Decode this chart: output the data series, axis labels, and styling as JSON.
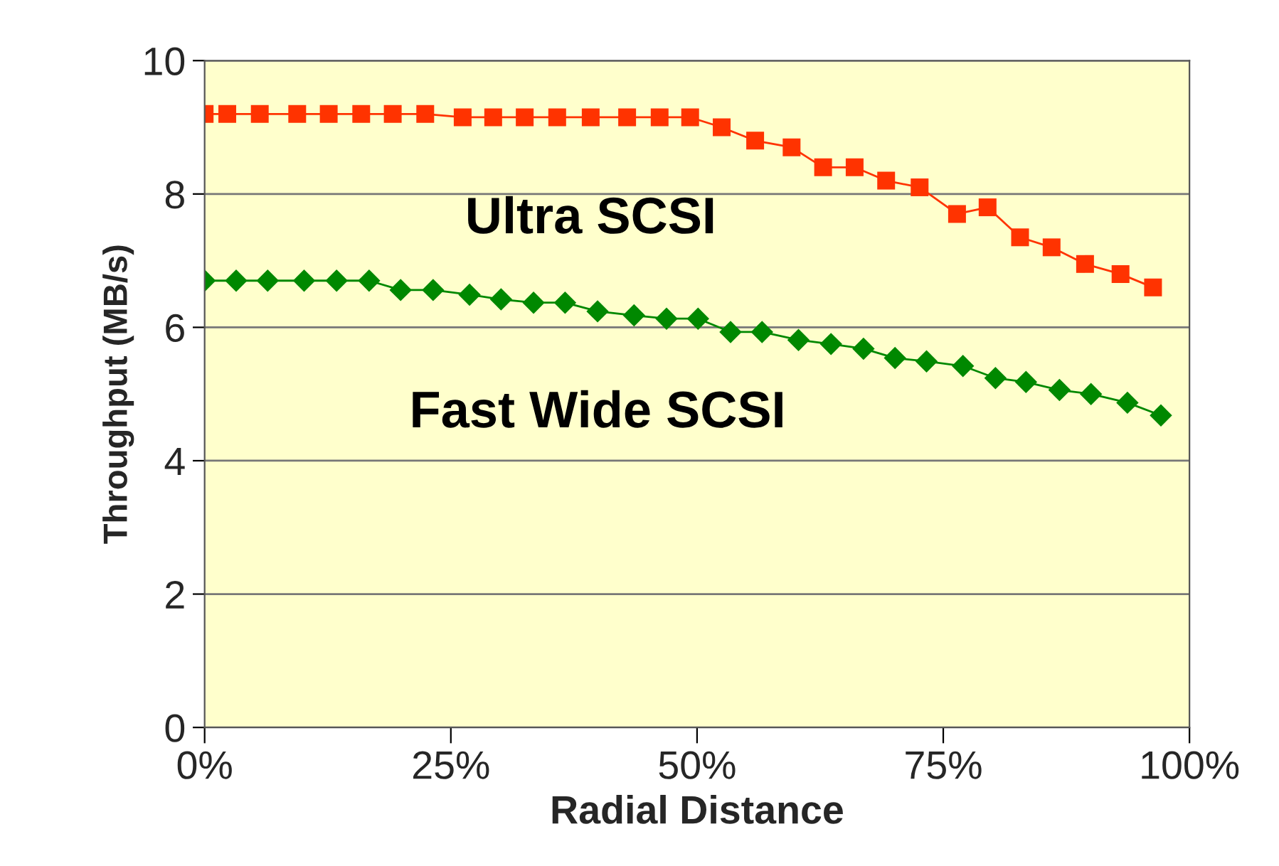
{
  "chart_data": {
    "type": "line",
    "xlabel": "Radial Distance",
    "ylabel": "Throughput (MB/s)",
    "xlim": [
      0,
      100
    ],
    "xticks": [
      {
        "value": 0,
        "label": "0%"
      },
      {
        "value": 25,
        "label": "25%"
      },
      {
        "value": 50,
        "label": "50%"
      },
      {
        "value": 75,
        "label": "75%"
      },
      {
        "value": 100,
        "label": "100%"
      }
    ],
    "ylim": [
      0,
      10
    ],
    "yticks": [
      0,
      2,
      4,
      6,
      8,
      10
    ],
    "grid": "y",
    "legend": false,
    "series": [
      {
        "name": "Ultra SCSI",
        "color": "#ff3300",
        "marker": "square",
        "x": [
          0,
          2.3,
          5.6,
          9.4,
          12.6,
          15.9,
          19.1,
          22.4,
          26.2,
          29.3,
          32.5,
          35.8,
          39.2,
          42.9,
          46.2,
          49.3,
          52.5,
          55.9,
          59.6,
          62.8,
          66,
          69.2,
          72.6,
          76.4,
          79.5,
          82.8,
          86,
          89.4,
          93,
          96.3
        ],
        "values": [
          9.2,
          9.2,
          9.2,
          9.2,
          9.2,
          9.2,
          9.2,
          9.2,
          9.15,
          9.15,
          9.15,
          9.15,
          9.15,
          9.15,
          9.15,
          9.15,
          9.0,
          8.8,
          8.7,
          8.4,
          8.4,
          8.2,
          8.1,
          7.7,
          7.8,
          7.35,
          7.2,
          6.95,
          6.8,
          6.6
        ]
      },
      {
        "name": "Fast Wide SCSI",
        "color": "#008800",
        "marker": "diamond",
        "x": [
          0,
          3.2,
          6.4,
          10.1,
          13.4,
          16.7,
          19.9,
          23.2,
          26.9,
          30.1,
          33.4,
          36.6,
          39.9,
          43.6,
          46.9,
          50.1,
          53.4,
          56.6,
          60.3,
          63.6,
          66.9,
          70.1,
          73.3,
          77,
          80.3,
          83.4,
          86.8,
          90,
          93.7,
          97.1
        ],
        "values": [
          6.7,
          6.7,
          6.7,
          6.7,
          6.7,
          6.7,
          6.56,
          6.56,
          6.49,
          6.42,
          6.37,
          6.37,
          6.24,
          6.18,
          6.13,
          6.13,
          5.93,
          5.93,
          5.81,
          5.75,
          5.68,
          5.54,
          5.49,
          5.42,
          5.24,
          5.18,
          5.06,
          5.0,
          4.87,
          4.68
        ]
      }
    ]
  }
}
